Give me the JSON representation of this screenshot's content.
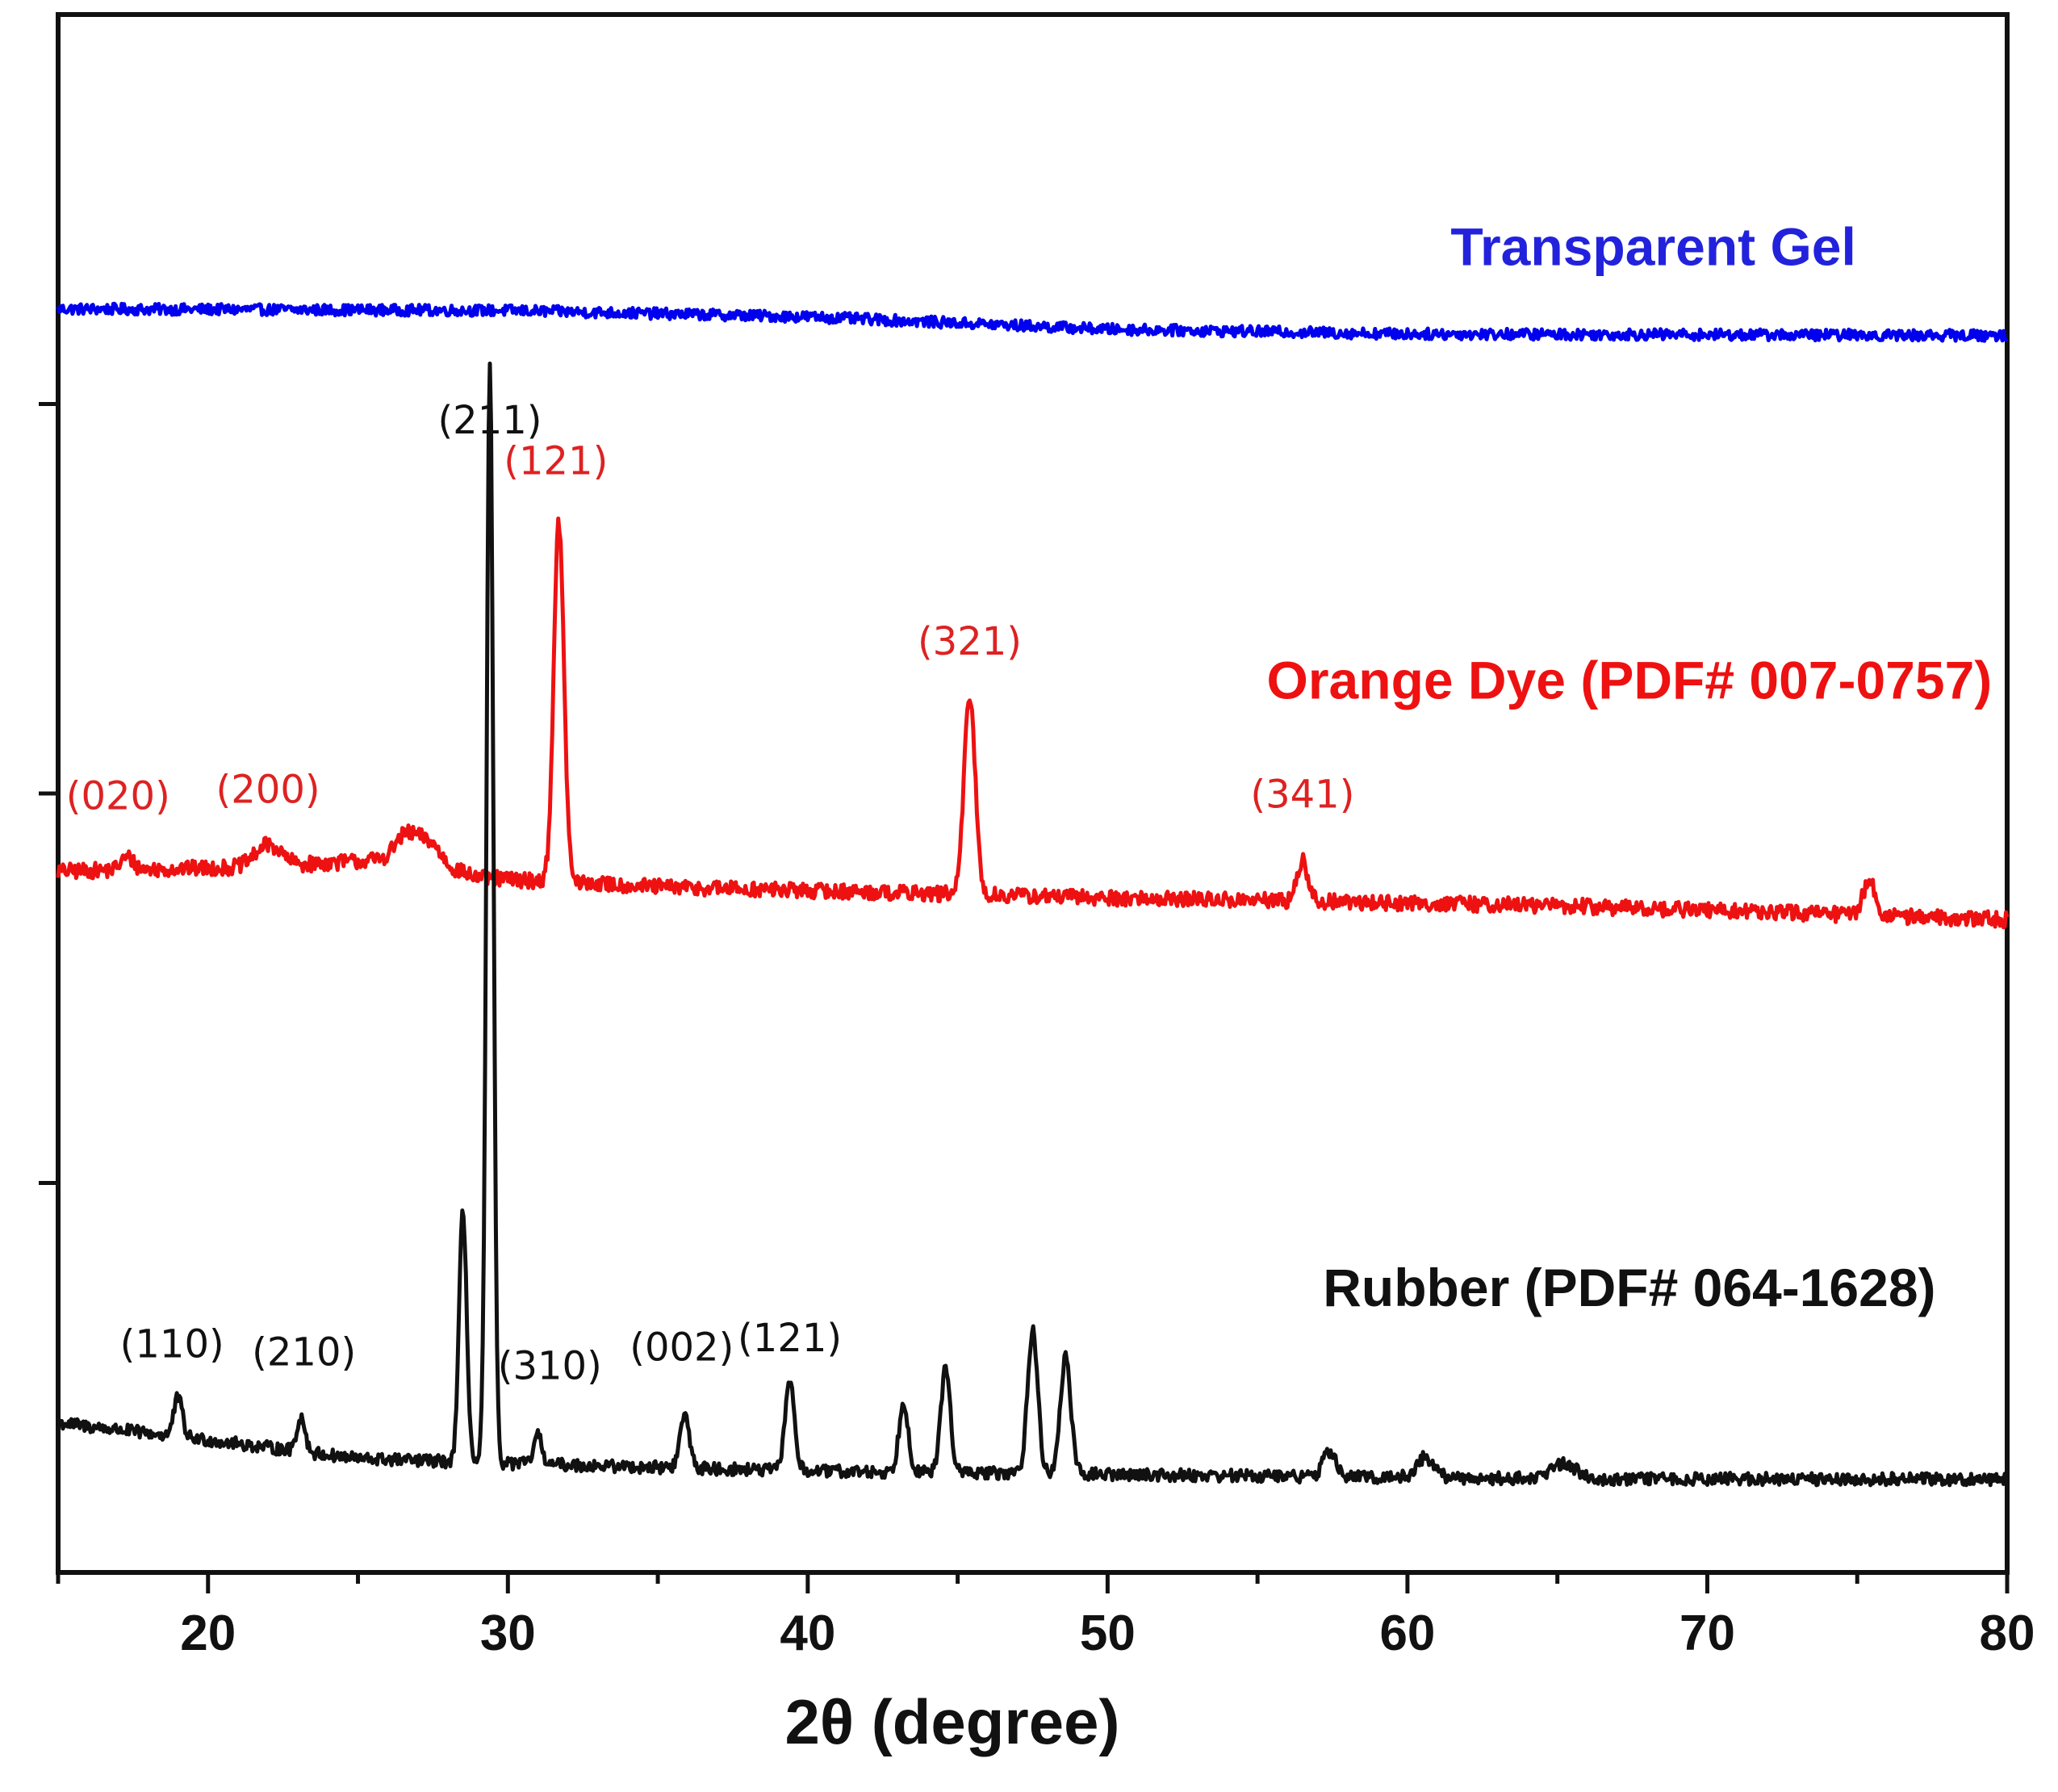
{
  "chart_data": {
    "type": "line",
    "title": "",
    "xlabel": "2θ (degree)",
    "ylabel": "",
    "xlim": [
      15,
      80
    ],
    "ylim": [
      0,
      100
    ],
    "x_ticks": [
      20,
      30,
      40,
      50,
      60,
      70,
      80
    ],
    "x_tick_labels": [
      "20",
      "30",
      "40",
      "50",
      "60",
      "70",
      "80"
    ],
    "y_ticks": [
      25,
      50,
      75
    ],
    "grid": false,
    "series": [
      {
        "name": "Transparent Gel",
        "color": "#0000ee",
        "baseline": [
          [
            15,
            81.1
          ],
          [
            30,
            81.0
          ],
          [
            40,
            80.6
          ],
          [
            50,
            79.8
          ],
          [
            60,
            79.5
          ],
          [
            80,
            79.4
          ]
        ],
        "peaks": [],
        "noise": 0.35
      },
      {
        "name": "Orange Dye (PDF# 007-0757)",
        "color": "#ee1111",
        "baseline": [
          [
            15,
            45.0
          ],
          [
            22,
            45.3
          ],
          [
            27,
            45.9
          ],
          [
            29,
            44.6
          ],
          [
            35,
            44.0
          ],
          [
            50,
            43.3
          ],
          [
            65,
            42.8
          ],
          [
            80,
            41.9
          ]
        ],
        "peaks": [
          {
            "x": 17.3,
            "height": 0.8,
            "width": 0.3
          },
          {
            "x": 22.0,
            "height": 1.4,
            "width": 0.6
          },
          {
            "x": 26.6,
            "height": 1.5,
            "width": 0.5
          },
          {
            "x": 27.4,
            "height": 1.2,
            "width": 0.5
          },
          {
            "x": 31.7,
            "height": 23.0,
            "width": 0.24
          },
          {
            "x": 45.4,
            "height": 12.8,
            "width": 0.26
          },
          {
            "x": 56.5,
            "height": 2.6,
            "width": 0.25
          },
          {
            "x": 75.4,
            "height": 2.2,
            "width": 0.3
          }
        ],
        "noise": 0.5,
        "peak_labels": [
          {
            "x": 17.0,
            "y": 49.0,
            "text": "(020)"
          },
          {
            "x": 22.0,
            "y": 49.4,
            "text": "(200)"
          },
          {
            "x": 31.6,
            "y": 70.5,
            "text": "(121)"
          },
          {
            "x": 45.4,
            "y": 58.9,
            "text": "(321)"
          },
          {
            "x": 56.5,
            "y": 49.1,
            "text": "(341)"
          }
        ]
      },
      {
        "name": "Rubber (PDF# 064-1628)",
        "color": "#111111",
        "baseline": [
          [
            15,
            9.6
          ],
          [
            20,
            8.5
          ],
          [
            25,
            7.3
          ],
          [
            30,
            7.0
          ],
          [
            40,
            6.5
          ],
          [
            50,
            6.3
          ],
          [
            65,
            6.0
          ],
          [
            80,
            6.0
          ]
        ],
        "peaks": [
          {
            "x": 19.0,
            "height": 2.5,
            "width": 0.2
          },
          {
            "x": 23.1,
            "height": 2.2,
            "width": 0.2
          },
          {
            "x": 28.5,
            "height": 16.0,
            "width": 0.18
          },
          {
            "x": 29.4,
            "height": 70.5,
            "width": 0.16
          },
          {
            "x": 31.0,
            "height": 1.8,
            "width": 0.2
          },
          {
            "x": 35.9,
            "height": 3.4,
            "width": 0.22
          },
          {
            "x": 39.4,
            "height": 5.8,
            "width": 0.22
          },
          {
            "x": 43.2,
            "height": 4.5,
            "width": 0.22
          },
          {
            "x": 44.6,
            "height": 6.8,
            "width": 0.22
          },
          {
            "x": 47.5,
            "height": 9.2,
            "width": 0.24
          },
          {
            "x": 48.6,
            "height": 7.6,
            "width": 0.24
          },
          {
            "x": 57.4,
            "height": 1.6,
            "width": 0.3
          },
          {
            "x": 60.6,
            "height": 1.3,
            "width": 0.4
          },
          {
            "x": 65.2,
            "height": 1.0,
            "width": 0.6
          }
        ],
        "noise": 0.4,
        "peak_labels": [
          {
            "x": 29.4,
            "y": 73.1,
            "text": "(211)"
          },
          {
            "x": 18.8,
            "y": 13.8,
            "text": "(110)"
          },
          {
            "x": 23.2,
            "y": 13.3,
            "text": "(210)"
          },
          {
            "x": 31.4,
            "y": 12.4,
            "text": "(310)"
          },
          {
            "x": 35.8,
            "y": 13.6,
            "text": "(002)"
          },
          {
            "x": 39.4,
            "y": 14.2,
            "text": "(121)"
          }
        ]
      }
    ],
    "legend": [
      {
        "text": "Transparent Gel",
        "color": "#2222dd",
        "x": 68.2,
        "y": 83.9
      },
      {
        "text": "Orange Dye (PDF# 007-0757)",
        "color": "#ee1111",
        "x": 67.4,
        "y": 56.1
      },
      {
        "text": "Rubber (PDF# 064-1628)",
        "color": "#111111",
        "x": 67.4,
        "y": 17.1
      }
    ]
  }
}
